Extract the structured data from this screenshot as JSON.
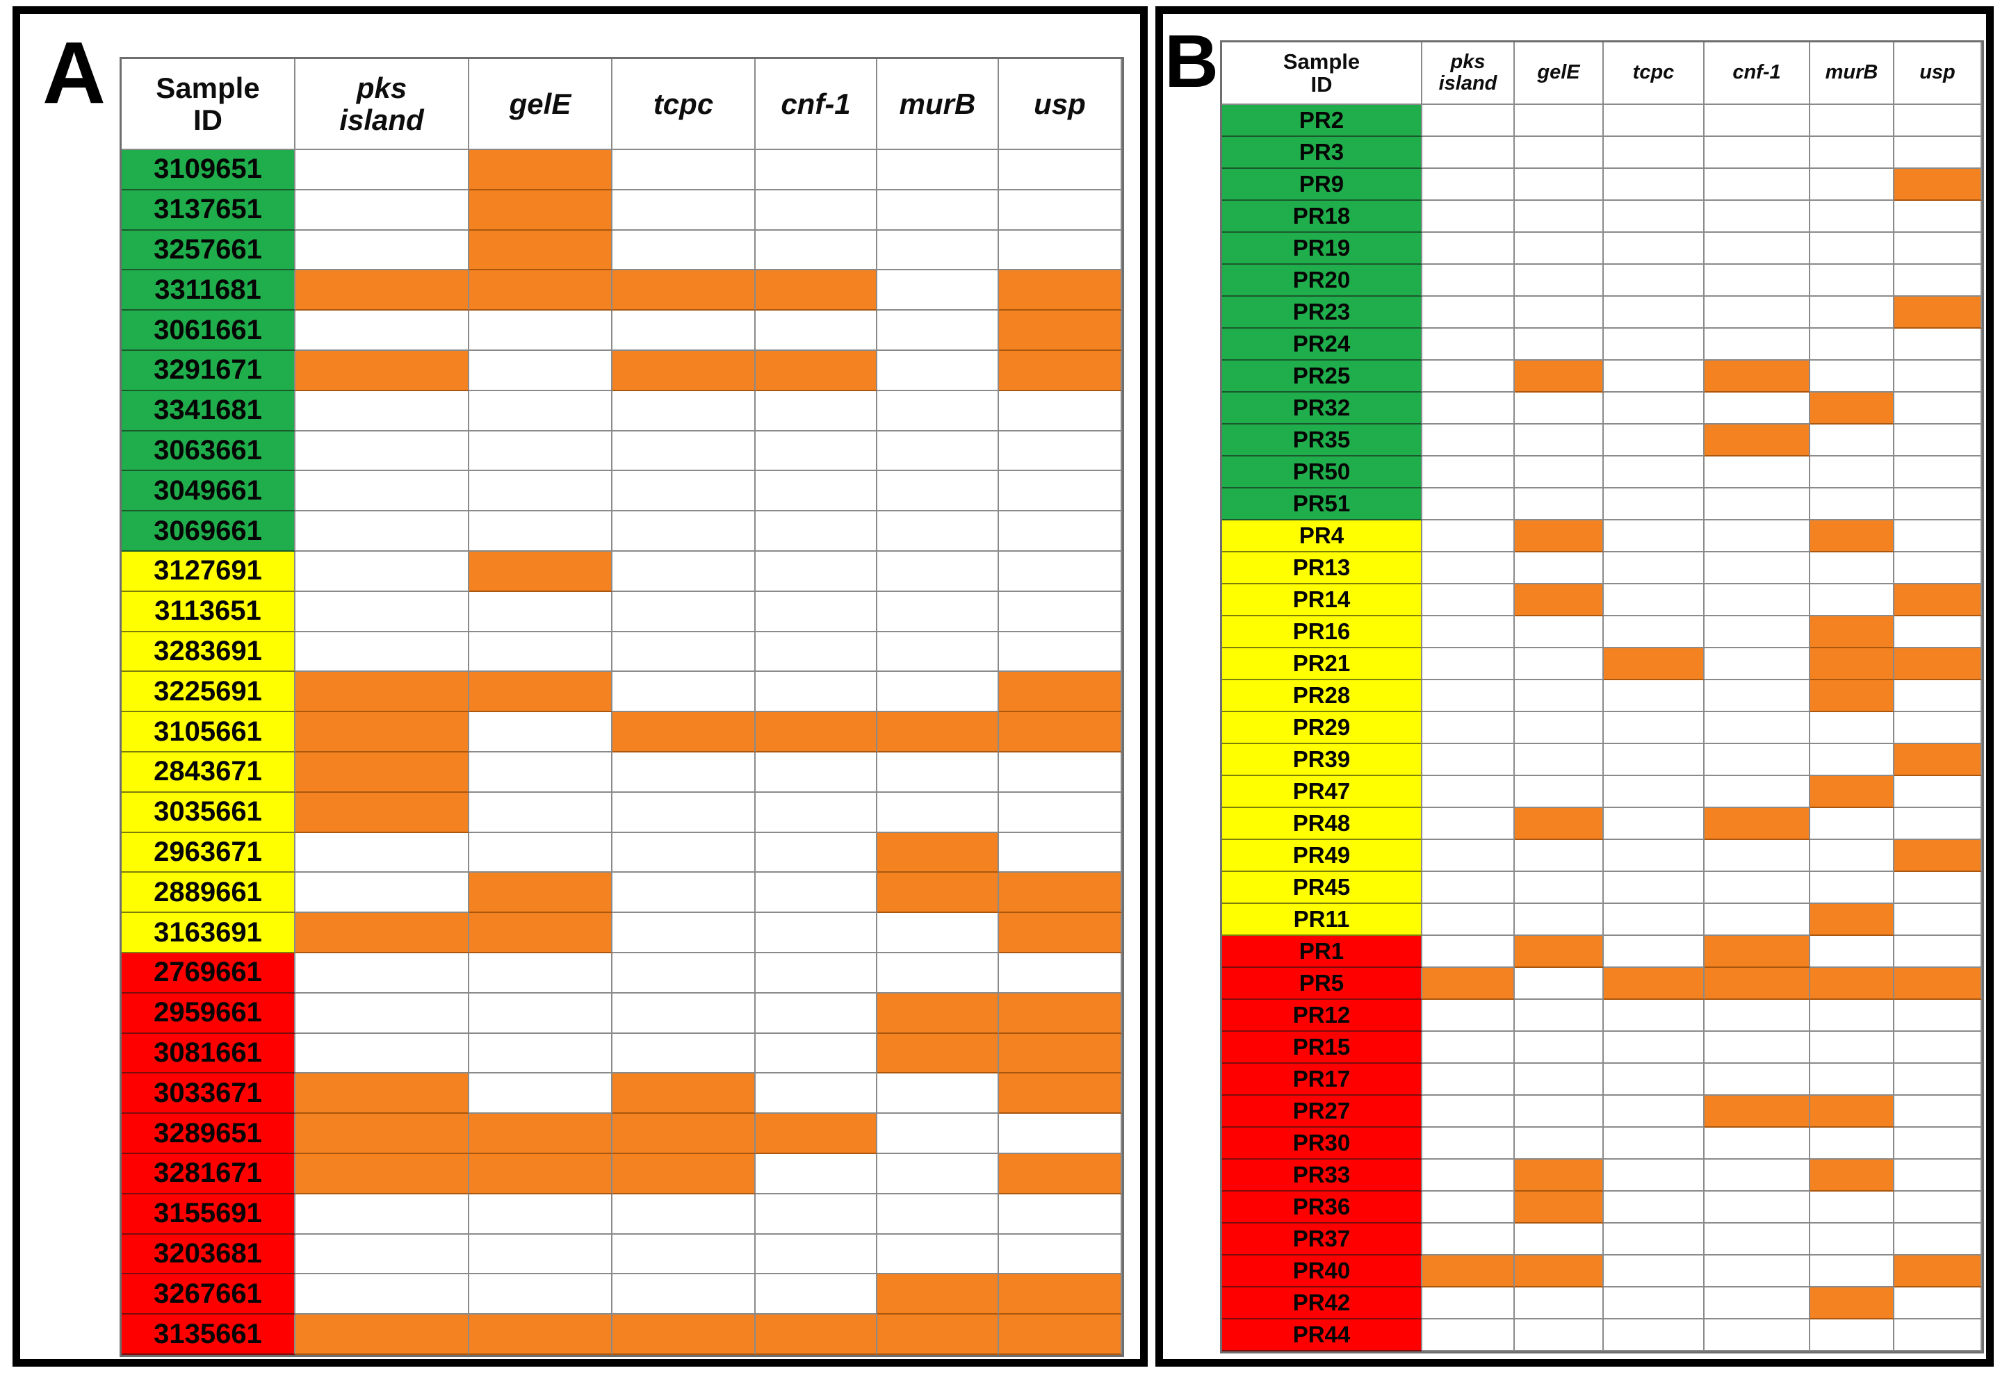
{
  "figure": {
    "panels": [
      {
        "label": "A"
      },
      {
        "label": "B"
      }
    ]
  },
  "colors": {
    "present": "#F58220",
    "group_green": "#1FAE4B",
    "group_yellow": "#FFFF00",
    "group_red": "#FF0000",
    "grid": "#8A8A8A"
  },
  "chart_data": [
    {
      "type": "heatmap",
      "panel": "A",
      "columns": [
        "Sample ID",
        "pks island",
        "gelE",
        "tcpc",
        "cnf-1",
        "murB",
        "usp"
      ],
      "rows": [
        {
          "id": "3109651",
          "group": "green",
          "values": [
            0,
            1,
            0,
            0,
            0,
            0
          ]
        },
        {
          "id": "3137651",
          "group": "green",
          "values": [
            0,
            1,
            0,
            0,
            0,
            0
          ]
        },
        {
          "id": "3257661",
          "group": "green",
          "values": [
            0,
            1,
            0,
            0,
            0,
            0
          ]
        },
        {
          "id": "3311681",
          "group": "green",
          "values": [
            1,
            1,
            1,
            1,
            0,
            1
          ]
        },
        {
          "id": "3061661",
          "group": "green",
          "values": [
            0,
            0,
            0,
            0,
            0,
            1
          ]
        },
        {
          "id": "3291671",
          "group": "green",
          "values": [
            1,
            0,
            1,
            1,
            0,
            1
          ]
        },
        {
          "id": "3341681",
          "group": "green",
          "values": [
            0,
            0,
            0,
            0,
            0,
            0
          ]
        },
        {
          "id": "3063661",
          "group": "green",
          "values": [
            0,
            0,
            0,
            0,
            0,
            0
          ]
        },
        {
          "id": "3049661",
          "group": "green",
          "values": [
            0,
            0,
            0,
            0,
            0,
            0
          ]
        },
        {
          "id": "3069661",
          "group": "green",
          "values": [
            0,
            0,
            0,
            0,
            0,
            0
          ]
        },
        {
          "id": "3127691",
          "group": "yellow",
          "values": [
            0,
            1,
            0,
            0,
            0,
            0
          ]
        },
        {
          "id": "3113651",
          "group": "yellow",
          "values": [
            0,
            0,
            0,
            0,
            0,
            0
          ]
        },
        {
          "id": "3283691",
          "group": "yellow",
          "values": [
            0,
            0,
            0,
            0,
            0,
            0
          ]
        },
        {
          "id": "3225691",
          "group": "yellow",
          "values": [
            1,
            1,
            0,
            0,
            0,
            1
          ]
        },
        {
          "id": "3105661",
          "group": "yellow",
          "values": [
            1,
            0,
            1,
            1,
            1,
            1
          ]
        },
        {
          "id": "2843671",
          "group": "yellow",
          "values": [
            1,
            0,
            0,
            0,
            0,
            0
          ]
        },
        {
          "id": "3035661",
          "group": "yellow",
          "values": [
            1,
            0,
            0,
            0,
            0,
            0
          ]
        },
        {
          "id": "2963671",
          "group": "yellow",
          "values": [
            0,
            0,
            0,
            0,
            1,
            0
          ]
        },
        {
          "id": "2889661",
          "group": "yellow",
          "values": [
            0,
            1,
            0,
            0,
            1,
            1
          ]
        },
        {
          "id": "3163691",
          "group": "yellow",
          "values": [
            1,
            1,
            0,
            0,
            0,
            1
          ]
        },
        {
          "id": "2769661",
          "group": "red",
          "values": [
            0,
            0,
            0,
            0,
            0,
            0
          ]
        },
        {
          "id": "2959661",
          "group": "red",
          "values": [
            0,
            0,
            0,
            0,
            1,
            1
          ]
        },
        {
          "id": "3081661",
          "group": "red",
          "values": [
            0,
            0,
            0,
            0,
            1,
            1
          ]
        },
        {
          "id": "3033671",
          "group": "red",
          "values": [
            1,
            0,
            1,
            0,
            0,
            1
          ]
        },
        {
          "id": "3289651",
          "group": "red",
          "values": [
            1,
            1,
            1,
            1,
            0,
            0
          ]
        },
        {
          "id": "3281671",
          "group": "red",
          "values": [
            1,
            1,
            1,
            0,
            0,
            1
          ]
        },
        {
          "id": "3155691",
          "group": "red",
          "values": [
            0,
            0,
            0,
            0,
            0,
            0
          ]
        },
        {
          "id": "3203681",
          "group": "red",
          "values": [
            0,
            0,
            0,
            0,
            0,
            0
          ]
        },
        {
          "id": "3267661",
          "group": "red",
          "values": [
            0,
            0,
            0,
            0,
            1,
            1
          ]
        },
        {
          "id": "3135661",
          "group": "red",
          "values": [
            1,
            1,
            1,
            1,
            1,
            1
          ]
        }
      ]
    },
    {
      "type": "heatmap",
      "panel": "B",
      "columns": [
        "Sample ID",
        "pks island",
        "gelE",
        "tcpc",
        "cnf-1",
        "murB",
        "usp"
      ],
      "rows": [
        {
          "id": "PR2",
          "group": "green",
          "values": [
            0,
            0,
            0,
            0,
            0,
            0
          ]
        },
        {
          "id": "PR3",
          "group": "green",
          "values": [
            0,
            0,
            0,
            0,
            0,
            0
          ]
        },
        {
          "id": "PR9",
          "group": "green",
          "values": [
            0,
            0,
            0,
            0,
            0,
            1
          ]
        },
        {
          "id": "PR18",
          "group": "green",
          "values": [
            0,
            0,
            0,
            0,
            0,
            0
          ]
        },
        {
          "id": "PR19",
          "group": "green",
          "values": [
            0,
            0,
            0,
            0,
            0,
            0
          ]
        },
        {
          "id": "PR20",
          "group": "green",
          "values": [
            0,
            0,
            0,
            0,
            0,
            0
          ]
        },
        {
          "id": "PR23",
          "group": "green",
          "values": [
            0,
            0,
            0,
            0,
            0,
            1
          ]
        },
        {
          "id": "PR24",
          "group": "green",
          "values": [
            0,
            0,
            0,
            0,
            0,
            0
          ]
        },
        {
          "id": "PR25",
          "group": "green",
          "values": [
            0,
            1,
            0,
            1,
            0,
            0
          ]
        },
        {
          "id": "PR32",
          "group": "green",
          "values": [
            0,
            0,
            0,
            0,
            1,
            0
          ]
        },
        {
          "id": "PR35",
          "group": "green",
          "values": [
            0,
            0,
            0,
            1,
            0,
            0
          ]
        },
        {
          "id": "PR50",
          "group": "green",
          "values": [
            0,
            0,
            0,
            0,
            0,
            0
          ]
        },
        {
          "id": "PR51",
          "group": "green",
          "values": [
            0,
            0,
            0,
            0,
            0,
            0
          ]
        },
        {
          "id": "PR4",
          "group": "yellow",
          "values": [
            0,
            1,
            0,
            0,
            1,
            0
          ]
        },
        {
          "id": "PR13",
          "group": "yellow",
          "values": [
            0,
            0,
            0,
            0,
            0,
            0
          ]
        },
        {
          "id": "PR14",
          "group": "yellow",
          "values": [
            0,
            1,
            0,
            0,
            0,
            1
          ]
        },
        {
          "id": "PR16",
          "group": "yellow",
          "values": [
            0,
            0,
            0,
            0,
            1,
            0
          ]
        },
        {
          "id": "PR21",
          "group": "yellow",
          "values": [
            0,
            0,
            1,
            0,
            1,
            1
          ]
        },
        {
          "id": "PR28",
          "group": "yellow",
          "values": [
            0,
            0,
            0,
            0,
            1,
            0
          ]
        },
        {
          "id": "PR29",
          "group": "yellow",
          "values": [
            0,
            0,
            0,
            0,
            0,
            0
          ]
        },
        {
          "id": "PR39",
          "group": "yellow",
          "values": [
            0,
            0,
            0,
            0,
            0,
            1
          ]
        },
        {
          "id": "PR47",
          "group": "yellow",
          "values": [
            0,
            0,
            0,
            0,
            1,
            0
          ]
        },
        {
          "id": "PR48",
          "group": "yellow",
          "values": [
            0,
            1,
            0,
            1,
            0,
            0
          ]
        },
        {
          "id": "PR49",
          "group": "yellow",
          "values": [
            0,
            0,
            0,
            0,
            0,
            1
          ]
        },
        {
          "id": "PR45",
          "group": "yellow",
          "values": [
            0,
            0,
            0,
            0,
            0,
            0
          ]
        },
        {
          "id": "PR11",
          "group": "yellow",
          "values": [
            0,
            0,
            0,
            0,
            1,
            0
          ]
        },
        {
          "id": "PR1",
          "group": "red",
          "values": [
            0,
            1,
            0,
            1,
            0,
            0
          ]
        },
        {
          "id": "PR5",
          "group": "red",
          "values": [
            1,
            0,
            1,
            1,
            1,
            1
          ]
        },
        {
          "id": "PR12",
          "group": "red",
          "values": [
            0,
            0,
            0,
            0,
            0,
            0
          ]
        },
        {
          "id": "PR15",
          "group": "red",
          "values": [
            0,
            0,
            0,
            0,
            0,
            0
          ]
        },
        {
          "id": "PR17",
          "group": "red",
          "values": [
            0,
            0,
            0,
            0,
            0,
            0
          ]
        },
        {
          "id": "PR27",
          "group": "red",
          "values": [
            0,
            0,
            0,
            1,
            1,
            0
          ]
        },
        {
          "id": "PR30",
          "group": "red",
          "values": [
            0,
            0,
            0,
            0,
            0,
            0
          ]
        },
        {
          "id": "PR33",
          "group": "red",
          "values": [
            0,
            1,
            0,
            0,
            1,
            0
          ]
        },
        {
          "id": "PR36",
          "group": "red",
          "values": [
            0,
            1,
            0,
            0,
            0,
            0
          ]
        },
        {
          "id": "PR37",
          "group": "red",
          "values": [
            0,
            0,
            0,
            0,
            0,
            0
          ]
        },
        {
          "id": "PR40",
          "group": "red",
          "values": [
            1,
            1,
            0,
            0,
            0,
            1
          ]
        },
        {
          "id": "PR42",
          "group": "red",
          "values": [
            0,
            0,
            0,
            0,
            1,
            0
          ]
        },
        {
          "id": "PR44",
          "group": "red",
          "values": [
            0,
            0,
            0,
            0,
            0,
            0
          ]
        }
      ]
    }
  ]
}
